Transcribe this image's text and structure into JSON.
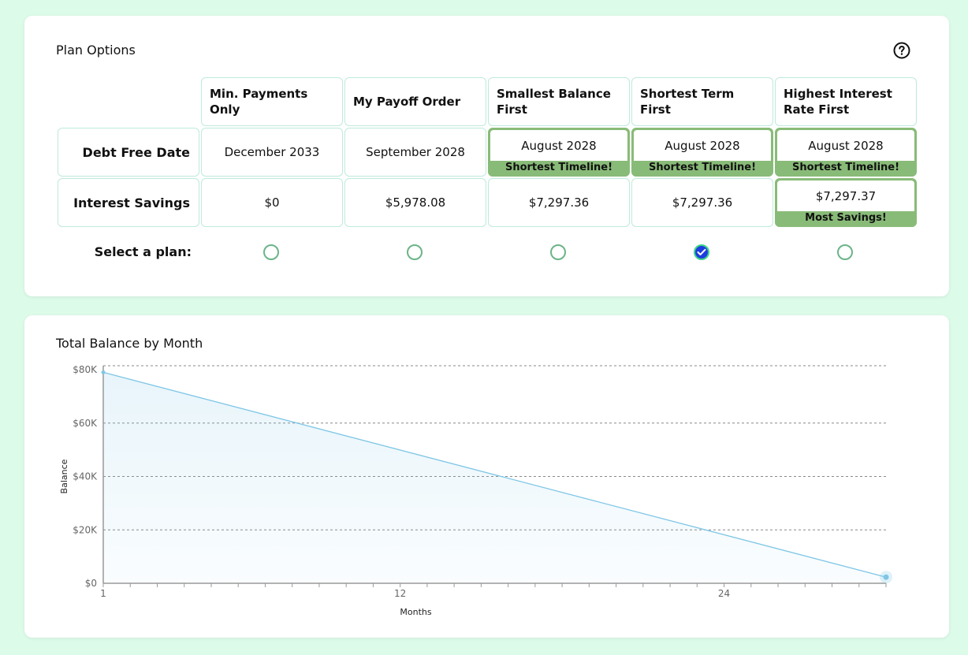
{
  "plan": {
    "title": "Plan Options",
    "help_icon": "question-circle-icon",
    "columns": [
      "Min. Payments Only",
      "My Payoff Order",
      "Smallest Balance First",
      "Shortest Term First",
      "Highest Interest Rate First"
    ],
    "rows": [
      {
        "label": "Debt Free Date",
        "values": [
          "December 2033",
          "September 2028",
          "August 2028",
          "August 2028",
          "August 2028"
        ],
        "badges": [
          "",
          "",
          "Shortest Timeline!",
          "Shortest Timeline!",
          "Shortest Timeline!"
        ]
      },
      {
        "label": "Interest Savings",
        "values": [
          "$0",
          "$5,978.08",
          "$7,297.36",
          "$7,297.36",
          "$7,297.37"
        ],
        "badges": [
          "",
          "",
          "",
          "",
          "Most Savings!"
        ]
      }
    ],
    "select_label": "Select a plan:",
    "selected_index": 3,
    "colors": {
      "badge_green": "#89bb78",
      "cell_border": "#bfeadc",
      "radio_checked": "#1f3ee0"
    }
  },
  "chart": {
    "title": "Total Balance by Month"
  },
  "chart_data": {
    "type": "area",
    "title": "Total Balance by Month",
    "xlabel": "Months",
    "ylabel": "Balance",
    "x_ticks": [
      "1",
      "12",
      "24"
    ],
    "y_ticks": [
      "$0",
      "$20K",
      "$40K",
      "$60K",
      "$80K"
    ],
    "xlim": [
      1,
      30
    ],
    "ylim": [
      0,
      80000
    ],
    "grid": true,
    "series": [
      {
        "color": "#7ec6e6",
        "x": [
          1,
          30
        ],
        "y": [
          79000,
          2300
        ]
      }
    ]
  }
}
